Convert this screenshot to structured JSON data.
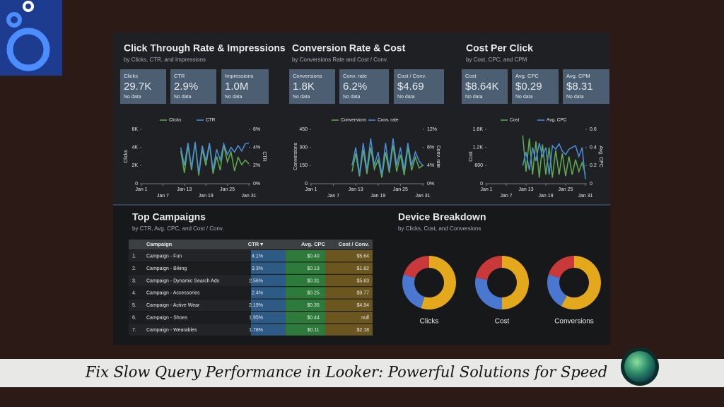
{
  "kpi_panels": [
    {
      "title": "Click Through Rate & Impressions",
      "subtitle": "by Clicks, CTR, and Impressions",
      "kpis": [
        {
          "label": "Clicks",
          "value": "29.7K",
          "note": "No data"
        },
        {
          "label": "CTR",
          "value": "2.9%",
          "note": "No data"
        },
        {
          "label": "Impressions",
          "value": "1.0M",
          "note": "No data"
        }
      ],
      "chart": {
        "type": "line",
        "ylabel": "Clicks",
        "y2label": "CTR",
        "x": [
          12,
          13,
          14,
          15,
          16,
          17,
          18,
          19,
          20,
          21,
          22,
          23,
          24,
          25,
          26,
          27,
          28,
          29,
          30,
          31
        ],
        "xlim": [
          1,
          31
        ],
        "xticks": [
          {
            "value": 1,
            "label": "Jan 1"
          },
          {
            "value": 7,
            "label": "Jan 7"
          },
          {
            "value": 13,
            "label": "Jan 13"
          },
          {
            "value": 19,
            "label": "Jan 19"
          },
          {
            "value": 25,
            "label": "Jan 25"
          },
          {
            "value": 31,
            "label": "Jan 31"
          }
        ],
        "ylim": [
          0,
          6000
        ],
        "yticks": [
          0,
          {
            "value": 2000,
            "label": "2K"
          },
          {
            "value": 4000,
            "label": "4K"
          },
          {
            "value": 6000,
            "label": "6K"
          }
        ],
        "y2lim": [
          0,
          6
        ],
        "y2ticks": [
          {
            "value": 0,
            "label": "0%"
          },
          {
            "value": 2,
            "label": "2%"
          },
          {
            "value": 4,
            "label": "4%"
          },
          {
            "value": 6,
            "label": "6%"
          }
        ],
        "series": [
          {
            "name": "Clicks",
            "color": "#5fae4b",
            "values": [
              3600,
              1200,
              4200,
              1500,
              4500,
              900,
              3800,
              2000,
              4400,
              1100,
              3000,
              1500,
              4300,
              2400,
              3500,
              1400,
              2900,
              2100,
              2600,
              2200
            ]
          },
          {
            "name": "CTR",
            "color": "#4b8fdc",
            "axis": "y2",
            "values": [
              4.0,
              2.0,
              4.5,
              1.8,
              4.6,
              1.2,
              4.2,
              2.5,
              4.5,
              1.5,
              3.8,
              2.6,
              4.4,
              3.2,
              4.0,
              3.5,
              4.2,
              3.6,
              4.4,
              4.5
            ]
          }
        ]
      }
    },
    {
      "title": "Conversion Rate & Cost",
      "subtitle": "by Conversions Rate and Cost / Conv.",
      "kpis": [
        {
          "label": "Conversions",
          "value": "1.8K",
          "note": "No data"
        },
        {
          "label": "Conv. rate",
          "value": "6.2%",
          "note": "No data"
        },
        {
          "label": "Cost / Conv.",
          "value": "$4.69",
          "note": "No data"
        }
      ],
      "chart": {
        "type": "line",
        "ylabel": "Conversions",
        "y2label": "Conv. rate",
        "x": [
          12,
          13,
          14,
          15,
          16,
          17,
          18,
          19,
          20,
          21,
          22,
          23,
          24,
          25,
          26,
          27,
          28,
          29,
          30,
          31
        ],
        "xlim": [
          1,
          31
        ],
        "xticks": [
          {
            "value": 1,
            "label": "Jan 1"
          },
          {
            "value": 7,
            "label": "Jan 7"
          },
          {
            "value": 13,
            "label": "Jan 13"
          },
          {
            "value": 19,
            "label": "Jan 19"
          },
          {
            "value": 25,
            "label": "Jan 25"
          },
          {
            "value": 31,
            "label": "Jan 31"
          }
        ],
        "ylim": [
          0,
          450
        ],
        "yticks": [
          0,
          150,
          300,
          450
        ],
        "y2lim": [
          0,
          12
        ],
        "y2ticks": [
          {
            "value": 0,
            "label": "0%"
          },
          {
            "value": 4,
            "label": "4%"
          },
          {
            "value": 8,
            "label": "8%"
          },
          {
            "value": 12,
            "label": "12%"
          }
        ],
        "series": [
          {
            "name": "Conversions",
            "color": "#5fae4b",
            "values": [
              100,
              250,
              60,
              280,
              80,
              300,
              120,
              200,
              50,
              260,
              90,
              320,
              100,
              240,
              70,
              300,
              110,
              220,
              130,
              150
            ]
          },
          {
            "name": "Conv. rate",
            "color": "#4b8fdc",
            "axis": "y2",
            "values": [
              4,
              8,
              2,
              9,
              3,
              10,
              4,
              7,
              2,
              9,
              3,
              10,
              4,
              8,
              3,
              9,
              4,
              7,
              5,
              4
            ]
          }
        ]
      }
    },
    {
      "title": "Cost Per Click",
      "subtitle": "by Cost, CPC, and CPM",
      "kpis": [
        {
          "label": "Cost",
          "value": "$8.64K",
          "note": "No data"
        },
        {
          "label": "Avg. CPC",
          "value": "$0.29",
          "note": "No data"
        },
        {
          "label": "Avg. CPM",
          "value": "$8.31",
          "note": "No data"
        }
      ],
      "chart": {
        "type": "line",
        "ylabel": "Cost",
        "y2label": "Avg. CPC",
        "x": [
          12,
          13,
          14,
          15,
          16,
          17,
          18,
          19,
          20,
          21,
          22,
          23,
          24,
          25,
          26,
          27,
          28,
          29,
          30,
          31
        ],
        "xlim": [
          1,
          31
        ],
        "xticks": [
          {
            "value": 1,
            "label": "Jan 1"
          },
          {
            "value": 7,
            "label": "Jan 7"
          },
          {
            "value": 13,
            "label": "Jan 13"
          },
          {
            "value": 19,
            "label": "Jan 19"
          },
          {
            "value": 25,
            "label": "Jan 25"
          },
          {
            "value": 31,
            "label": "Jan 31"
          }
        ],
        "ylim": [
          0,
          1800
        ],
        "yticks": [
          0,
          600,
          {
            "value": 1200,
            "label": "1.2K"
          },
          {
            "value": 1800,
            "label": "1.8K"
          }
        ],
        "y2lim": [
          0,
          0.6
        ],
        "y2ticks": [
          0,
          0.2,
          0.4,
          0.6
        ],
        "series": [
          {
            "name": "Cost",
            "color": "#5fae4b",
            "values": [
              1600,
              400,
              1500,
              300,
              1400,
              200,
              1300,
              300,
              1200,
              200,
              1100,
              300,
              1000,
              250,
              900,
              300,
              800,
              400,
              700,
              300
            ]
          },
          {
            "name": "Avg. CPC",
            "color": "#4b8fdc",
            "axis": "y2",
            "values": [
              0.2,
              0.35,
              0.15,
              0.4,
              0.25,
              0.45,
              0.3,
              0.4,
              0.1,
              0.42,
              0.38,
              0.44,
              0.36,
              0.32,
              0.38,
              0.4,
              0.42,
              0.3,
              0.4,
              0.05
            ]
          }
        ]
      }
    }
  ],
  "top_campaigns": {
    "title": "Top Campaigns",
    "subtitle": "by CTR, Avg. CPC, and Cost / Conv.",
    "columns": [
      "Campaign",
      "CTR ▾",
      "Avg. CPC",
      "Cost / Conv."
    ],
    "rows": [
      [
        "1.",
        "Campaign - Fun",
        "4.1%",
        "$0.40",
        "$5.64"
      ],
      [
        "2.",
        "Campaign - Biking",
        "3.3%",
        "$0.13",
        "$1.82"
      ],
      [
        "3.",
        "Campaign - Dynamic Search Ads",
        "2.56%",
        "$0.31",
        "$5.63"
      ],
      [
        "4.",
        "Campaign - Accessories",
        "2.4%",
        "$0.25",
        "$9.77"
      ],
      [
        "5.",
        "Campaign - Active Wear",
        "2.19%",
        "$0.35",
        "$4.94"
      ],
      [
        "6.",
        "Campaign - Shoes",
        "1.95%",
        "$0.44",
        "null"
      ],
      [
        "7.",
        "Campaign - Wearables",
        "1.78%",
        "$0.11",
        "$2.18"
      ]
    ]
  },
  "device_breakdown": {
    "title": "Device Breakdown",
    "subtitle": "by Clicks, Cost, and Conversions",
    "donuts": [
      {
        "label": "Clicks",
        "segments": [
          {
            "color": "#e3a81c",
            "value": 55
          },
          {
            "color": "#4a78d0",
            "value": 25
          },
          {
            "color": "#c9393a",
            "value": 20
          }
        ]
      },
      {
        "label": "Cost",
        "segments": [
          {
            "color": "#e3a81c",
            "value": 50
          },
          {
            "color": "#4a78d0",
            "value": 28
          },
          {
            "color": "#c9393a",
            "value": 22
          }
        ]
      },
      {
        "label": "Conversions",
        "segments": [
          {
            "color": "#e3a81c",
            "value": 58
          },
          {
            "color": "#4a78d0",
            "value": 22
          },
          {
            "color": "#c9393a",
            "value": 20
          }
        ]
      }
    ]
  },
  "banner": {
    "title": "Fix Slow Query Performance in Looker: Powerful Solutions for Speed"
  }
}
